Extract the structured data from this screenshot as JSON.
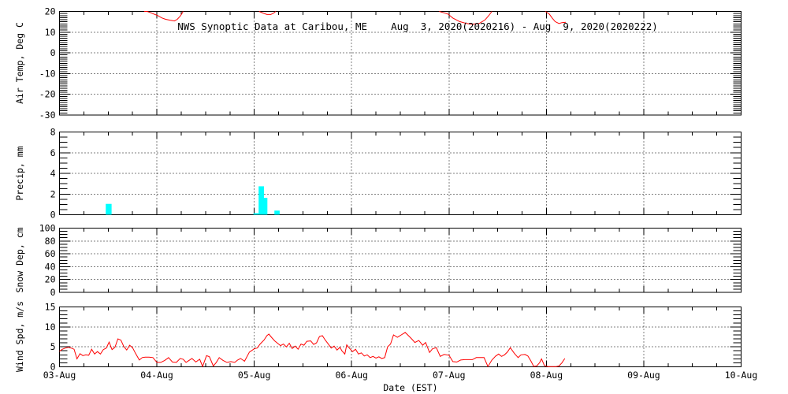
{
  "chart_data": {
    "type": "line",
    "title": "NWS Synoptic Data at Caribou, ME    Aug  3, 2020(2020216) - Aug  9, 2020(2020222)",
    "xlabel": "Date (EST)",
    "x_axis": {
      "tick_labels": [
        "03-Aug",
        "04-Aug",
        "05-Aug",
        "06-Aug",
        "07-Aug",
        "08-Aug",
        "09-Aug",
        "10-Aug"
      ],
      "range_days": [
        0,
        7
      ],
      "minor_tick_day_step": 0.25,
      "grid": "dotted-vertical-at-each-day"
    },
    "colors": {
      "series_line": "#ff0000",
      "precip_bar": "#00ffff",
      "axis": "#000000",
      "background": "#ffffff"
    },
    "panels": [
      {
        "id": "air_temp",
        "ylabel": "Air Temp, Deg C",
        "units": "Deg C",
        "ymin": -30,
        "ymax": 20,
        "yticks": [
          -30,
          -20,
          -10,
          0,
          10,
          20
        ],
        "yminor_step": 1,
        "grid": "dotted-horizontal-at-majors",
        "series_type": "line",
        "note": "line clipped above 20 C; visible only where temp <= 20",
        "segments": [
          [
            [
              0.87,
              20
            ],
            [
              0.9,
              20
            ],
            [
              0.93,
              19.5
            ],
            [
              0.97,
              18.7
            ],
            [
              1.01,
              18.0
            ],
            [
              1.05,
              16.9
            ],
            [
              1.09,
              16.2
            ],
            [
              1.14,
              15.7
            ],
            [
              1.18,
              15.4
            ],
            [
              1.21,
              16.2
            ],
            [
              1.24,
              17.7
            ],
            [
              1.26,
              19.2
            ],
            [
              1.27,
              20
            ]
          ],
          [
            [
              2.05,
              20
            ],
            [
              2.09,
              19.2
            ],
            [
              2.13,
              18.5
            ],
            [
              2.17,
              18.5
            ],
            [
              2.2,
              19.2
            ],
            [
              2.22,
              20
            ]
          ],
          [
            [
              3.9,
              20
            ],
            [
              3.95,
              19.3
            ],
            [
              3.99,
              18.7
            ],
            [
              4.04,
              16.8
            ],
            [
              4.11,
              15.1
            ],
            [
              4.18,
              14.2
            ],
            [
              4.23,
              13.8
            ],
            [
              4.31,
              14.2
            ],
            [
              4.37,
              15.9
            ],
            [
              4.41,
              18.1
            ],
            [
              4.44,
              20
            ]
          ],
          [
            [
              4.99,
              20
            ],
            [
              5.03,
              18.7
            ],
            [
              5.06,
              16.8
            ],
            [
              5.09,
              15.1
            ],
            [
              5.13,
              14.2
            ],
            [
              5.16,
              14.6
            ],
            [
              5.2,
              14.8
            ]
          ]
        ]
      },
      {
        "id": "precip",
        "ylabel": "Precip, mm",
        "units": "mm",
        "ymin": 0,
        "ymax": 8,
        "yticks": [
          0,
          2,
          4,
          6,
          8
        ],
        "yminor_step": 0.5,
        "grid": "dotted-horizontal-at-majors",
        "series_type": "bar",
        "bars": [
          {
            "x0": 0.475,
            "x1": 0.535,
            "value": 1.05
          },
          {
            "x0": 1.992,
            "x1": 2.045,
            "value": 0.15
          },
          {
            "x0": 2.045,
            "x1": 2.1,
            "value": 2.75
          },
          {
            "x0": 2.1,
            "x1": 2.135,
            "value": 1.63
          },
          {
            "x0": 2.207,
            "x1": 2.261,
            "value": 0.4
          }
        ]
      },
      {
        "id": "snow_depth",
        "ylabel": "Snow Dep, cm",
        "units": "cm",
        "ymin": 0,
        "ymax": 100,
        "yticks": [
          0,
          20,
          40,
          60,
          80,
          100
        ],
        "yminor_step": 5,
        "grid": "dotted-horizontal-at-majors",
        "series_type": "none",
        "bars": []
      },
      {
        "id": "wind_speed",
        "ylabel": "Wind Spd, m/s",
        "units": "m/s",
        "ymin": 0,
        "ymax": 15,
        "yticks": [
          0,
          5,
          10,
          15
        ],
        "yminor_step": 1,
        "grid": "dotted-horizontal-at-majors",
        "series_type": "line",
        "points": [
          [
            0.0,
            3.9
          ],
          [
            0.03,
            4.4
          ],
          [
            0.06,
            4.7
          ],
          [
            0.09,
            4.9
          ],
          [
            0.12,
            4.7
          ],
          [
            0.15,
            4.4
          ],
          [
            0.18,
            2.0
          ],
          [
            0.21,
            3.3
          ],
          [
            0.24,
            2.8
          ],
          [
            0.27,
            3.0
          ],
          [
            0.3,
            2.9
          ],
          [
            0.33,
            4.4
          ],
          [
            0.36,
            3.2
          ],
          [
            0.39,
            3.8
          ],
          [
            0.42,
            3.2
          ],
          [
            0.45,
            4.3
          ],
          [
            0.48,
            4.7
          ],
          [
            0.51,
            6.2
          ],
          [
            0.54,
            4.3
          ],
          [
            0.57,
            4.9
          ],
          [
            0.6,
            7.0
          ],
          [
            0.63,
            6.7
          ],
          [
            0.66,
            5.1
          ],
          [
            0.69,
            4.2
          ],
          [
            0.72,
            5.4
          ],
          [
            0.75,
            4.8
          ],
          [
            0.78,
            3.4
          ],
          [
            0.82,
            1.7
          ],
          [
            0.85,
            2.3
          ],
          [
            0.88,
            2.4
          ],
          [
            0.92,
            2.4
          ],
          [
            0.96,
            2.3
          ],
          [
            1.0,
            1.1
          ],
          [
            1.04,
            1.1
          ],
          [
            1.08,
            1.6
          ],
          [
            1.12,
            2.3
          ],
          [
            1.16,
            1.2
          ],
          [
            1.2,
            1.1
          ],
          [
            1.24,
            2.1
          ],
          [
            1.27,
            1.9
          ],
          [
            1.3,
            1.1
          ],
          [
            1.33,
            1.6
          ],
          [
            1.36,
            2.1
          ],
          [
            1.4,
            1.2
          ],
          [
            1.44,
            1.9
          ],
          [
            1.47,
            0.1
          ],
          [
            1.51,
            2.8
          ],
          [
            1.54,
            2.5
          ],
          [
            1.58,
            0.2
          ],
          [
            1.61,
            1.1
          ],
          [
            1.64,
            2.3
          ],
          [
            1.68,
            1.6
          ],
          [
            1.72,
            1.1
          ],
          [
            1.76,
            1.3
          ],
          [
            1.8,
            1.1
          ],
          [
            1.83,
            1.7
          ],
          [
            1.86,
            2.1
          ],
          [
            1.9,
            1.4
          ],
          [
            1.95,
            3.7
          ],
          [
            2.0,
            4.5
          ],
          [
            2.03,
            4.7
          ],
          [
            2.06,
            5.7
          ],
          [
            2.1,
            6.7
          ],
          [
            2.13,
            7.8
          ],
          [
            2.15,
            8.2
          ],
          [
            2.18,
            7.3
          ],
          [
            2.21,
            6.5
          ],
          [
            2.24,
            5.9
          ],
          [
            2.27,
            5.3
          ],
          [
            2.3,
            5.7
          ],
          [
            2.33,
            5.0
          ],
          [
            2.36,
            5.9
          ],
          [
            2.39,
            4.6
          ],
          [
            2.42,
            5.2
          ],
          [
            2.45,
            4.4
          ],
          [
            2.48,
            5.7
          ],
          [
            2.51,
            5.4
          ],
          [
            2.54,
            6.4
          ],
          [
            2.58,
            6.5
          ],
          [
            2.61,
            5.6
          ],
          [
            2.64,
            6.0
          ],
          [
            2.67,
            7.6
          ],
          [
            2.7,
            7.8
          ],
          [
            2.73,
            6.7
          ],
          [
            2.76,
            5.7
          ],
          [
            2.79,
            4.7
          ],
          [
            2.82,
            5.2
          ],
          [
            2.85,
            4.2
          ],
          [
            2.88,
            4.9
          ],
          [
            2.9,
            4.0
          ],
          [
            2.93,
            3.2
          ],
          [
            2.95,
            5.5
          ],
          [
            2.98,
            4.6
          ],
          [
            3.01,
            3.8
          ],
          [
            3.04,
            4.4
          ],
          [
            3.07,
            3.2
          ],
          [
            3.1,
            3.5
          ],
          [
            3.13,
            2.7
          ],
          [
            3.16,
            3.0
          ],
          [
            3.19,
            2.3
          ],
          [
            3.22,
            2.6
          ],
          [
            3.25,
            2.2
          ],
          [
            3.28,
            2.5
          ],
          [
            3.31,
            2.1
          ],
          [
            3.34,
            2.3
          ],
          [
            3.37,
            5.0
          ],
          [
            3.4,
            5.7
          ],
          [
            3.43,
            8.0
          ],
          [
            3.47,
            7.4
          ],
          [
            3.51,
            8.0
          ],
          [
            3.55,
            8.6
          ],
          [
            3.58,
            7.9
          ],
          [
            3.62,
            6.9
          ],
          [
            3.65,
            6.1
          ],
          [
            3.69,
            6.6
          ],
          [
            3.73,
            5.4
          ],
          [
            3.76,
            6.1
          ],
          [
            3.8,
            3.6
          ],
          [
            3.83,
            4.5
          ],
          [
            3.87,
            4.8
          ],
          [
            3.91,
            2.6
          ],
          [
            3.95,
            3.1
          ],
          [
            4.0,
            2.9
          ],
          [
            4.04,
            1.3
          ],
          [
            4.08,
            1.2
          ],
          [
            4.12,
            1.7
          ],
          [
            4.16,
            1.8
          ],
          [
            4.2,
            1.8
          ],
          [
            4.24,
            1.8
          ],
          [
            4.28,
            2.3
          ],
          [
            4.32,
            2.3
          ],
          [
            4.36,
            2.3
          ],
          [
            4.4,
            0.05
          ],
          [
            4.44,
            1.7
          ],
          [
            4.48,
            2.7
          ],
          [
            4.51,
            3.2
          ],
          [
            4.54,
            2.6
          ],
          [
            4.57,
            3.0
          ],
          [
            4.6,
            3.7
          ],
          [
            4.63,
            4.8
          ],
          [
            4.67,
            3.4
          ],
          [
            4.71,
            2.3
          ],
          [
            4.74,
            3.0
          ],
          [
            4.78,
            3.1
          ],
          [
            4.81,
            2.7
          ],
          [
            4.84,
            1.5
          ],
          [
            4.87,
            0.1
          ],
          [
            4.9,
            0.2
          ],
          [
            4.93,
            1.0
          ],
          [
            4.95,
            2.0
          ],
          [
            4.98,
            0.3
          ],
          [
            5.02,
            0.05
          ],
          [
            5.06,
            0.05
          ],
          [
            5.1,
            0.05
          ],
          [
            5.13,
            0.2
          ],
          [
            5.16,
            1.0
          ],
          [
            5.19,
            2.1
          ]
        ]
      }
    ]
  }
}
